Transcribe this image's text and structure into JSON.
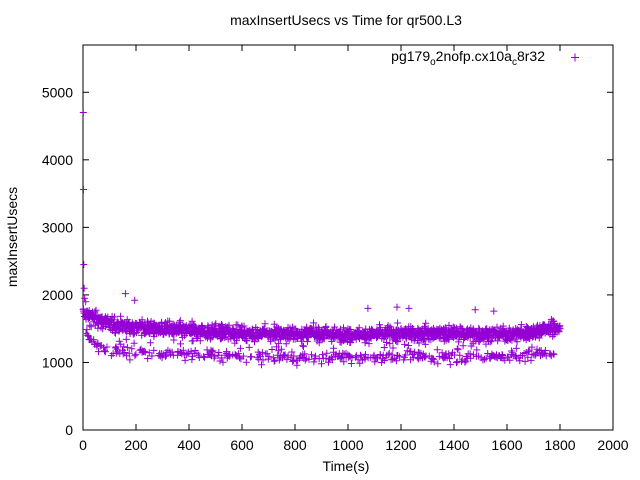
{
  "chart_data": {
    "type": "scatter",
    "title": "maxInsertUsecs vs Time for qr500.L3",
    "xlabel": "Time(s)",
    "ylabel": "maxInsertUsecs",
    "xlim": [
      0,
      2000
    ],
    "ylim": [
      0,
      5700
    ],
    "xticks": [
      0,
      200,
      400,
      600,
      800,
      1000,
      1200,
      1400,
      1600,
      1800,
      2000
    ],
    "yticks": [
      0,
      1000,
      2000,
      3000,
      4000,
      5000
    ],
    "grid": false,
    "legend_position": "top-right",
    "marker": "+",
    "series": [
      {
        "name": "pg179_o2nofp.cx10a_c8r32",
        "legend_main": "pg179",
        "legend_sub1": "o",
        "legend_mid": "2nofp.cx10a",
        "legend_sub2": "c",
        "legend_end": "8r32",
        "color": "#9400d3",
        "outliers": [
          [
            1,
            4700
          ],
          [
            2,
            3560
          ],
          [
            3,
            2450
          ],
          [
            4,
            2100
          ],
          [
            6,
            1950
          ],
          [
            10,
            1900
          ],
          [
            160,
            2020
          ],
          [
            195,
            1920
          ],
          [
            1075,
            1800
          ],
          [
            1185,
            1820
          ],
          [
            1230,
            1800
          ],
          [
            1480,
            1780
          ],
          [
            1550,
            1760
          ]
        ],
        "upper_band": [
          [
            0,
            1720
          ],
          [
            20,
            1700
          ],
          [
            50,
            1640
          ],
          [
            100,
            1580
          ],
          [
            150,
            1540
          ],
          [
            200,
            1520
          ],
          [
            300,
            1490
          ],
          [
            400,
            1470
          ],
          [
            500,
            1450
          ],
          [
            600,
            1440
          ],
          [
            700,
            1430
          ],
          [
            800,
            1420
          ],
          [
            900,
            1420
          ],
          [
            1000,
            1420
          ],
          [
            1100,
            1420
          ],
          [
            1200,
            1430
          ],
          [
            1300,
            1430
          ],
          [
            1400,
            1430
          ],
          [
            1500,
            1420
          ],
          [
            1600,
            1420
          ],
          [
            1700,
            1450
          ],
          [
            1750,
            1500
          ],
          [
            1800,
            1530
          ]
        ],
        "lower_band": [
          [
            10,
            1420
          ],
          [
            30,
            1320
          ],
          [
            60,
            1250
          ],
          [
            100,
            1200
          ],
          [
            150,
            1150
          ],
          [
            200,
            1150
          ],
          [
            300,
            1130
          ],
          [
            400,
            1110
          ],
          [
            500,
            1100
          ],
          [
            600,
            1090
          ],
          [
            700,
            1080
          ],
          [
            800,
            1070
          ],
          [
            900,
            1070
          ],
          [
            1000,
            1070
          ],
          [
            1100,
            1080
          ],
          [
            1200,
            1080
          ],
          [
            1300,
            1080
          ],
          [
            1400,
            1080
          ],
          [
            1500,
            1090
          ],
          [
            1600,
            1090
          ],
          [
            1700,
            1100
          ],
          [
            1780,
            1150
          ]
        ],
        "x_range": [
          0,
          1800
        ]
      }
    ]
  }
}
